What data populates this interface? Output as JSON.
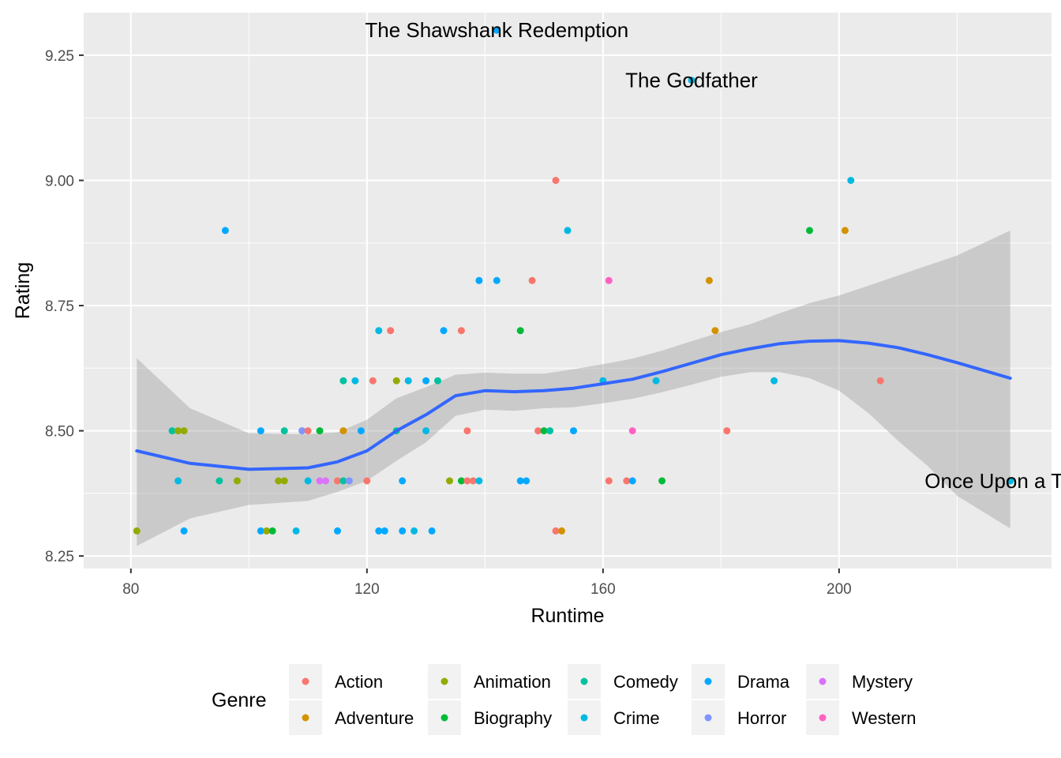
{
  "chart_data": {
    "type": "scatter",
    "xlabel": "Runtime",
    "ylabel": "Rating",
    "xlim": [
      72,
      236
    ],
    "ylim": [
      8.225,
      9.335
    ],
    "x_ticks": [
      80,
      120,
      160,
      200
    ],
    "x_tick_labels": [
      "80",
      "120",
      "160",
      "200"
    ],
    "y_ticks": [
      8.25,
      8.5,
      8.75,
      9.0,
      9.25
    ],
    "y_tick_labels": [
      "8.25",
      "8.50",
      "8.75",
      "9.00",
      "9.25"
    ],
    "grid": true,
    "legend_placement": "bottom",
    "legend_title": "Genre",
    "genres": [
      {
        "name": "Action",
        "color": "#F8766D"
      },
      {
        "name": "Adventure",
        "color": "#D39200"
      },
      {
        "name": "Animation",
        "color": "#93AA00"
      },
      {
        "name": "Biography",
        "color": "#00BA38"
      },
      {
        "name": "Comedy",
        "color": "#00C19F"
      },
      {
        "name": "Crime",
        "color": "#00B9E3"
      },
      {
        "name": "Drama",
        "color": "#00A9FF"
      },
      {
        "name": "Horror",
        "color": "#8095FF"
      },
      {
        "name": "Mystery",
        "color": "#DB72FB"
      },
      {
        "name": "Western",
        "color": "#FF61C3"
      }
    ],
    "points": [
      {
        "x": 142,
        "y": 9.3,
        "g": "Drama"
      },
      {
        "x": 175,
        "y": 9.2,
        "g": "Crime"
      },
      {
        "x": 152,
        "y": 9.0,
        "g": "Action"
      },
      {
        "x": 202,
        "y": 9.0,
        "g": "Crime"
      },
      {
        "x": 96,
        "y": 8.9,
        "g": "Drama"
      },
      {
        "x": 154,
        "y": 8.9,
        "g": "Crime"
      },
      {
        "x": 195,
        "y": 8.9,
        "g": "Biography"
      },
      {
        "x": 201,
        "y": 8.9,
        "g": "Adventure"
      },
      {
        "x": 139,
        "y": 8.8,
        "g": "Drama"
      },
      {
        "x": 142,
        "y": 8.8,
        "g": "Drama"
      },
      {
        "x": 148,
        "y": 8.8,
        "g": "Action"
      },
      {
        "x": 161,
        "y": 8.8,
        "g": "Western"
      },
      {
        "x": 178,
        "y": 8.8,
        "g": "Adventure"
      },
      {
        "x": 122,
        "y": 8.7,
        "g": "Crime"
      },
      {
        "x": 124,
        "y": 8.7,
        "g": "Action"
      },
      {
        "x": 133,
        "y": 8.7,
        "g": "Drama"
      },
      {
        "x": 136,
        "y": 8.7,
        "g": "Action"
      },
      {
        "x": 146,
        "y": 8.7,
        "g": "Biography"
      },
      {
        "x": 179,
        "y": 8.7,
        "g": "Adventure"
      },
      {
        "x": 116,
        "y": 8.6,
        "g": "Comedy"
      },
      {
        "x": 118,
        "y": 8.6,
        "g": "Crime"
      },
      {
        "x": 121,
        "y": 8.6,
        "g": "Action"
      },
      {
        "x": 125,
        "y": 8.6,
        "g": "Animation"
      },
      {
        "x": 127,
        "y": 8.6,
        "g": "Crime"
      },
      {
        "x": 130,
        "y": 8.6,
        "g": "Drama"
      },
      {
        "x": 132,
        "y": 8.6,
        "g": "Comedy"
      },
      {
        "x": 160,
        "y": 8.6,
        "g": "Crime"
      },
      {
        "x": 169,
        "y": 8.6,
        "g": "Crime"
      },
      {
        "x": 189,
        "y": 8.6,
        "g": "Crime"
      },
      {
        "x": 207,
        "y": 8.6,
        "g": "Action"
      },
      {
        "x": 87,
        "y": 8.5,
        "g": "Comedy"
      },
      {
        "x": 88,
        "y": 8.5,
        "g": "Animation"
      },
      {
        "x": 89,
        "y": 8.5,
        "g": "Animation"
      },
      {
        "x": 102,
        "y": 8.5,
        "g": "Drama"
      },
      {
        "x": 106,
        "y": 8.5,
        "g": "Comedy"
      },
      {
        "x": 109,
        "y": 8.5,
        "g": "Horror"
      },
      {
        "x": 110,
        "y": 8.5,
        "g": "Action"
      },
      {
        "x": 112,
        "y": 8.5,
        "g": "Biography"
      },
      {
        "x": 116,
        "y": 8.5,
        "g": "Adventure"
      },
      {
        "x": 119,
        "y": 8.5,
        "g": "Drama"
      },
      {
        "x": 125,
        "y": 8.5,
        "g": "Comedy"
      },
      {
        "x": 130,
        "y": 8.5,
        "g": "Crime"
      },
      {
        "x": 137,
        "y": 8.5,
        "g": "Action"
      },
      {
        "x": 149,
        "y": 8.5,
        "g": "Action"
      },
      {
        "x": 150,
        "y": 8.5,
        "g": "Biography"
      },
      {
        "x": 151,
        "y": 8.5,
        "g": "Comedy"
      },
      {
        "x": 155,
        "y": 8.5,
        "g": "Drama"
      },
      {
        "x": 165,
        "y": 8.5,
        "g": "Western"
      },
      {
        "x": 181,
        "y": 8.5,
        "g": "Action"
      },
      {
        "x": 88,
        "y": 8.4,
        "g": "Crime"
      },
      {
        "x": 95,
        "y": 8.4,
        "g": "Comedy"
      },
      {
        "x": 98,
        "y": 8.4,
        "g": "Animation"
      },
      {
        "x": 105,
        "y": 8.4,
        "g": "Animation"
      },
      {
        "x": 106,
        "y": 8.4,
        "g": "Animation"
      },
      {
        "x": 110,
        "y": 8.4,
        "g": "Crime"
      },
      {
        "x": 112,
        "y": 8.4,
        "g": "Mystery"
      },
      {
        "x": 113,
        "y": 8.4,
        "g": "Mystery"
      },
      {
        "x": 115,
        "y": 8.4,
        "g": "Action"
      },
      {
        "x": 116,
        "y": 8.4,
        "g": "Comedy"
      },
      {
        "x": 117,
        "y": 8.4,
        "g": "Horror"
      },
      {
        "x": 120,
        "y": 8.4,
        "g": "Action"
      },
      {
        "x": 126,
        "y": 8.4,
        "g": "Drama"
      },
      {
        "x": 134,
        "y": 8.4,
        "g": "Animation"
      },
      {
        "x": 136,
        "y": 8.4,
        "g": "Biography"
      },
      {
        "x": 137,
        "y": 8.4,
        "g": "Action"
      },
      {
        "x": 138,
        "y": 8.4,
        "g": "Action"
      },
      {
        "x": 139,
        "y": 8.4,
        "g": "Crime"
      },
      {
        "x": 146,
        "y": 8.4,
        "g": "Drama"
      },
      {
        "x": 147,
        "y": 8.4,
        "g": "Drama"
      },
      {
        "x": 161,
        "y": 8.4,
        "g": "Action"
      },
      {
        "x": 164,
        "y": 8.4,
        "g": "Action"
      },
      {
        "x": 165,
        "y": 8.4,
        "g": "Drama"
      },
      {
        "x": 170,
        "y": 8.4,
        "g": "Biography"
      },
      {
        "x": 229,
        "y": 8.4,
        "g": "Crime"
      },
      {
        "x": 81,
        "y": 8.3,
        "g": "Animation"
      },
      {
        "x": 89,
        "y": 8.3,
        "g": "Drama"
      },
      {
        "x": 102,
        "y": 8.3,
        "g": "Drama"
      },
      {
        "x": 103,
        "y": 8.3,
        "g": "Animation"
      },
      {
        "x": 104,
        "y": 8.3,
        "g": "Biography"
      },
      {
        "x": 108,
        "y": 8.3,
        "g": "Crime"
      },
      {
        "x": 115,
        "y": 8.3,
        "g": "Drama"
      },
      {
        "x": 122,
        "y": 8.3,
        "g": "Drama"
      },
      {
        "x": 123,
        "y": 8.3,
        "g": "Drama"
      },
      {
        "x": 126,
        "y": 8.3,
        "g": "Drama"
      },
      {
        "x": 128,
        "y": 8.3,
        "g": "Crime"
      },
      {
        "x": 131,
        "y": 8.3,
        "g": "Drama"
      },
      {
        "x": 152,
        "y": 8.3,
        "g": "Action"
      },
      {
        "x": 153,
        "y": 8.3,
        "g": "Adventure"
      }
    ],
    "smooth": {
      "label": "loess",
      "color": "#3366FF",
      "x": [
        81,
        90,
        100,
        110,
        115,
        120,
        125,
        130,
        135,
        140,
        145,
        150,
        155,
        160,
        165,
        170,
        175,
        180,
        185,
        190,
        195,
        200,
        205,
        210,
        215,
        220,
        229
      ],
      "y": [
        8.46,
        8.435,
        8.423,
        8.426,
        8.438,
        8.46,
        8.5,
        8.532,
        8.57,
        8.58,
        8.578,
        8.58,
        8.585,
        8.594,
        8.603,
        8.618,
        8.635,
        8.652,
        8.664,
        8.674,
        8.679,
        8.68,
        8.675,
        8.666,
        8.652,
        8.636,
        8.605
      ],
      "lower": [
        8.27,
        8.325,
        8.352,
        8.36,
        8.378,
        8.4,
        8.44,
        8.477,
        8.53,
        8.542,
        8.54,
        8.545,
        8.547,
        8.555,
        8.564,
        8.577,
        8.592,
        8.608,
        8.617,
        8.617,
        8.605,
        8.58,
        8.535,
        8.48,
        8.43,
        8.37,
        8.305
      ],
      "upper": [
        8.645,
        8.545,
        8.495,
        8.493,
        8.497,
        8.522,
        8.565,
        8.587,
        8.612,
        8.616,
        8.614,
        8.614,
        8.623,
        8.633,
        8.644,
        8.66,
        8.679,
        8.697,
        8.713,
        8.735,
        8.755,
        8.77,
        8.79,
        8.81,
        8.83,
        8.85,
        8.9
      ]
    },
    "annotations": [
      {
        "text": "The Shawshank Redemption",
        "x": 142,
        "y": 9.3
      },
      {
        "text": "The Godfather",
        "x": 175,
        "y": 9.2
      },
      {
        "text": "Once Upon a Time",
        "x": 229,
        "y": 8.4
      }
    ]
  }
}
